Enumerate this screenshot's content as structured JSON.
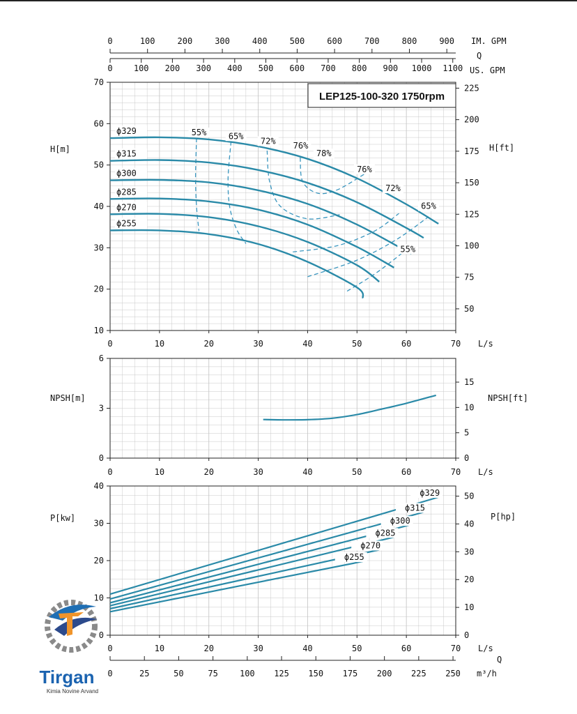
{
  "chart_data": [
    {
      "id": "head",
      "type": "line",
      "title": "LEP125-100-320 1750rpm",
      "xlabel": "L/s",
      "ylabel": "H[m]",
      "ylabel_right": "H[ft]",
      "xlim": [
        0,
        70
      ],
      "ylim": [
        10,
        70
      ],
      "xticks": [
        "0",
        "10",
        "20",
        "30",
        "40",
        "50",
        "60",
        "70"
      ],
      "yticks": [
        "10",
        "20",
        "30",
        "40",
        "50",
        "60",
        "70"
      ],
      "yticks_right": [
        "50",
        "75",
        "100",
        "125",
        "150",
        "175",
        "200",
        "225"
      ],
      "grid": true,
      "series": [
        {
          "name": "ϕ329",
          "x": [
            0,
            10,
            20,
            30,
            40,
            50,
            60,
            66.5
          ],
          "y": [
            56.5,
            56.7,
            56.2,
            54.5,
            51.5,
            46.8,
            40.5,
            35.8
          ]
        },
        {
          "name": "ϕ315",
          "x": [
            0,
            10,
            20,
            30,
            40,
            50,
            60,
            63.5
          ],
          "y": [
            51.0,
            51.2,
            50.6,
            48.8,
            45.7,
            41.0,
            34.8,
            32.4
          ]
        },
        {
          "name": "ϕ300",
          "x": [
            0,
            10,
            20,
            30,
            40,
            50,
            60,
            60.5
          ],
          "y": [
            46.3,
            46.4,
            45.8,
            43.9,
            40.6,
            35.6,
            29.2,
            28.9
          ]
        },
        {
          "name": "ϕ285",
          "x": [
            0,
            10,
            20,
            30,
            40,
            50,
            57.5
          ],
          "y": [
            41.8,
            41.9,
            41.2,
            39.2,
            35.6,
            30.2,
            25.2
          ]
        },
        {
          "name": "ϕ270",
          "x": [
            0,
            10,
            20,
            30,
            40,
            50,
            54.5
          ],
          "y": [
            38.1,
            38.2,
            37.4,
            35.2,
            31.4,
            25.8,
            21.8
          ]
        },
        {
          "name": "ϕ255",
          "x": [
            0,
            10,
            20,
            30,
            40,
            50,
            51.2
          ],
          "y": [
            34.2,
            34.2,
            33.3,
            30.9,
            26.6,
            20.4,
            17.8
          ]
        }
      ],
      "efficiency_curves": [
        {
          "label": "55%",
          "x": [
            17.5,
            17.3,
            17.5,
            18.0
          ],
          "y": [
            56.5,
            47,
            40,
            34
          ]
        },
        {
          "label": "65%",
          "x": [
            24.5,
            23.9,
            24.2,
            25.6,
            27.5
          ],
          "y": [
            55.7,
            47,
            40,
            34.5,
            31
          ]
        },
        {
          "label": "72%",
          "x": [
            31.8,
            32.3,
            34.5,
            40,
            46.5
          ],
          "y": [
            53.5,
            46,
            40,
            37,
            38
          ]
        },
        {
          "label": "76%",
          "x": [
            38.5,
            39,
            42,
            46,
            51.5
          ],
          "y": [
            51.8,
            46,
            43.2,
            44,
            47.8
          ]
        },
        {
          "label": "72%",
          "x": [
            48,
            54,
            60.5
          ],
          "y": [
            19.5,
            24,
            30
          ]
        },
        {
          "label": "65%",
          "x": [
            40,
            50,
            58,
            64.5
          ],
          "y": [
            23,
            27,
            32,
            37.5
          ]
        },
        {
          "label": "55%",
          "x": [
            37,
            46,
            53.5,
            58.5
          ],
          "y": [
            29,
            30.5,
            34,
            38.3
          ]
        }
      ],
      "efficiency_labels": [
        {
          "text": "55%",
          "x": 18.0,
          "y": 57.2
        },
        {
          "text": "65%",
          "x": 25.5,
          "y": 56.3
        },
        {
          "text": "72%",
          "x": 32.0,
          "y": 55.1
        },
        {
          "text": "76%",
          "x": 38.6,
          "y": 54.0
        },
        {
          "text": "78%",
          "x": 43.3,
          "y": 52.1
        },
        {
          "text": "76%",
          "x": 51.5,
          "y": 48.3
        },
        {
          "text": "72%",
          "x": 57.3,
          "y": 43.7
        },
        {
          "text": "65%",
          "x": 64.5,
          "y": 39.4
        },
        {
          "text": "55%",
          "x": 60.3,
          "y": 29.0
        }
      ]
    },
    {
      "id": "npsh",
      "type": "line",
      "xlabel": "L/s",
      "ylabel": "NPSH[m]",
      "ylabel_right": "NPSH[ft]",
      "xlim": [
        0,
        70
      ],
      "ylim": [
        0,
        6
      ],
      "xticks": [
        "0",
        "10",
        "20",
        "30",
        "40",
        "50",
        "60",
        "70"
      ],
      "yticks": [
        "0",
        "3",
        "6"
      ],
      "yticks_right": [
        "0",
        "5",
        "10",
        "15"
      ],
      "grid": true,
      "series": [
        {
          "name": "",
          "x": [
            31,
            35,
            40,
            45,
            50,
            55,
            60,
            66
          ],
          "y": [
            2.32,
            2.3,
            2.31,
            2.4,
            2.62,
            2.95,
            3.3,
            3.78
          ]
        }
      ]
    },
    {
      "id": "power",
      "type": "line",
      "xlabel": "L/s",
      "ylabel": "P[kw]",
      "ylabel_right": "P[hp]",
      "xlim": [
        0,
        70
      ],
      "ylim": [
        0,
        40
      ],
      "xticks": [
        "0",
        "10",
        "20",
        "30",
        "40",
        "50",
        "60",
        "70"
      ],
      "yticks": [
        "0",
        "10",
        "20",
        "30",
        "40"
      ],
      "yticks_right": [
        "0",
        "10",
        "20",
        "30",
        "40",
        "50"
      ],
      "grid": true,
      "series": [
        {
          "name": "ϕ329",
          "x": [
            0,
            66.5
          ],
          "y": [
            11.0,
            37.0
          ]
        },
        {
          "name": "ϕ315",
          "x": [
            0,
            63.5
          ],
          "y": [
            9.7,
            33.0
          ]
        },
        {
          "name": "ϕ300",
          "x": [
            0,
            60.5
          ],
          "y": [
            8.7,
            29.5
          ]
        },
        {
          "name": "ϕ285",
          "x": [
            0,
            57.5
          ],
          "y": [
            7.9,
            26.3
          ]
        },
        {
          "name": "ϕ270",
          "x": [
            0,
            54.5
          ],
          "y": [
            7.1,
            22.9
          ]
        },
        {
          "name": "ϕ255",
          "x": [
            0,
            51.2
          ],
          "y": [
            6.3,
            19.8
          ]
        }
      ]
    }
  ],
  "top_axes": {
    "im_label": "IM. GPM",
    "q_label": "Q",
    "us_label": "US. GPM",
    "im_ticks": [
      "0",
      "100",
      "200",
      "300",
      "400",
      "500",
      "600",
      "700",
      "800",
      "900"
    ],
    "us_ticks": [
      "0",
      "100",
      "200",
      "300",
      "400",
      "500",
      "600",
      "700",
      "800",
      "900",
      "1000",
      "1100"
    ]
  },
  "bottom_axis": {
    "label": "m³/h",
    "q_label": "Q",
    "ticks": [
      "0",
      "25",
      "50",
      "75",
      "100",
      "125",
      "150",
      "175",
      "200",
      "225",
      "250"
    ]
  },
  "colors": {
    "curve": "#2a8aa8",
    "efficiency": "#3a96bf",
    "grid": "#c8c8c8",
    "axis": "#222222"
  },
  "logo": {
    "name": "Tirgan",
    "subtitle": "Kimia Novine Arvand"
  }
}
